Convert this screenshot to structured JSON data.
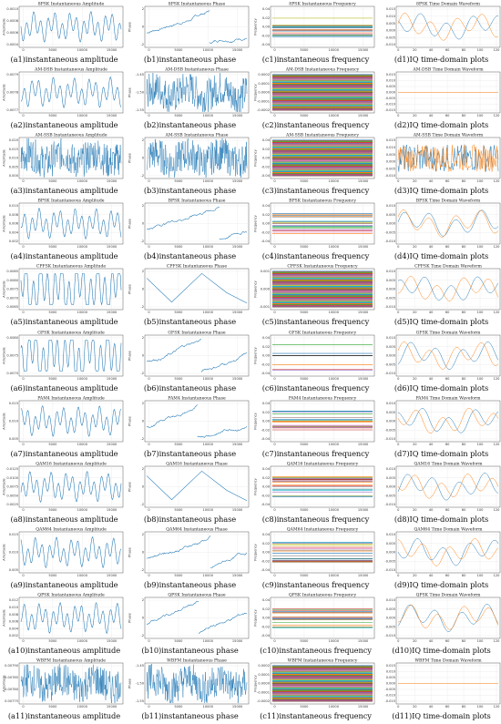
{
  "chart_data": [
    {
      "type": "line",
      "title": "8PSK Instantaneous Amplitude",
      "caption": "(a1)instantaneous amplitude",
      "ylabel": "Amplitude",
      "kind": "amp",
      "yticks": [
        "0.0010",
        "0.0008",
        "0.0006",
        "0.0004"
      ],
      "xticks": [
        "0",
        "5000",
        "10000",
        "15000"
      ]
    },
    {
      "type": "line",
      "title": "8PSK Instantaneous Phase",
      "caption": "(b1)instantaneous phase",
      "ylabel": "Phase",
      "kind": "phase",
      "yticks": [
        "2",
        "0",
        "-2"
      ],
      "xticks": [
        "0",
        "5000",
        "10000",
        "15000"
      ]
    },
    {
      "type": "line",
      "title": "8PSK Instantaneous Frequency",
      "caption": "(c1)instantaneous frequency",
      "ylabel": "Frequency",
      "kind": "freq",
      "yticks": [
        "0.04",
        "0.02",
        "0.00",
        "-0.02",
        "-0.04"
      ],
      "xticks": [
        "0",
        "5000",
        "10000",
        "15000"
      ]
    },
    {
      "type": "line",
      "title": "8PSK Time Domain Waveform",
      "caption": "(d1)IQ time-domain plots",
      "kind": "iq",
      "yticks": [
        "0.015",
        "0.010",
        "0.005",
        "0.000",
        "-0.005",
        "-0.010"
      ],
      "xticks": [
        "0",
        "20",
        "40",
        "60",
        "80",
        "100",
        "120"
      ]
    },
    {
      "type": "line",
      "title": "AM-DSB Instantaneous Amplitude",
      "caption": "(a2)instantaneous amplitude",
      "ylabel": "Amplitude",
      "kind": "amp",
      "yticks": [
        "0.0079",
        "0.0078",
        "0.0077"
      ],
      "xticks": [
        "0",
        "5000",
        "10000",
        "15000"
      ]
    },
    {
      "type": "line",
      "title": "AM-DSB Instantaneous Phase",
      "caption": "(b2)instantaneous phase",
      "ylabel": "Phase",
      "kind": "phasenoise",
      "yticks": [
        "-1.45",
        "-1.50",
        "-1.55"
      ],
      "xticks": [
        "0",
        "5000",
        "10000",
        "15000"
      ]
    },
    {
      "type": "line",
      "title": "AM-DSB Instantaneous Frequency",
      "caption": "(c2)instantaneous frequency",
      "ylabel": "Frequency",
      "kind": "freqdense",
      "yticks": [
        "0.0002",
        "0.0001",
        "0.0000",
        "-0.0001",
        "-0.0002"
      ],
      "xticks": [
        "0",
        "5000",
        "10000",
        "15000"
      ]
    },
    {
      "type": "line",
      "title": "AM-DSB Time Domain Waveform",
      "caption": "(d2)IQ time-domain plots",
      "kind": "iqflat",
      "yticks": [
        "0.015",
        "0.010",
        "0.005",
        "0.000",
        "-0.005",
        "-0.010",
        "-0.015"
      ],
      "xticks": [
        "0",
        "20",
        "40",
        "60",
        "80",
        "100",
        "120"
      ]
    },
    {
      "type": "line",
      "title": "AM-SSB Instantaneous Amplitude",
      "caption": "(a3)instantaneous amplitude",
      "ylabel": "Amplitude",
      "kind": "ampnoise",
      "yticks": [
        "0.020",
        "0.015",
        "0.010",
        "0.005",
        "0.000"
      ],
      "xticks": [
        "0",
        "5000",
        "10000",
        "15000"
      ]
    },
    {
      "type": "line",
      "title": "AM-SSB Instantaneous Phase",
      "caption": "(b3)instantaneous phase",
      "ylabel": "Phase",
      "kind": "phasenoise",
      "yticks": [
        "2",
        "0",
        "-2"
      ],
      "xticks": [
        "0",
        "5000",
        "10000",
        "15000"
      ]
    },
    {
      "type": "line",
      "title": "AM-SSB Instantaneous Frequency",
      "caption": "(c3)instantaneous frequency",
      "ylabel": "Frequency",
      "kind": "freqdense",
      "yticks": [
        "0.04",
        "0.02",
        "0.00",
        "-0.02",
        "-0.04"
      ],
      "xticks": [
        "0",
        "5000",
        "10000",
        "15000"
      ]
    },
    {
      "type": "line",
      "title": "AM-SSB Time Domain Waveform",
      "caption": "(d3)IQ time-domain plots",
      "kind": "iqnoise",
      "yticks": [
        "0.015",
        "0.010",
        "0.005",
        "0.000",
        "-0.005",
        "-0.010"
      ],
      "xticks": [
        "0",
        "20",
        "40",
        "60",
        "80",
        "100",
        "120"
      ]
    },
    {
      "type": "line",
      "title": "BPSK Instantaneous Amplitude",
      "caption": "(a4)instantaneous amplitude",
      "ylabel": "Amplitude",
      "kind": "amp",
      "yticks": [
        "0.010",
        "0.008",
        "0.006",
        "0.004",
        "0.002"
      ],
      "xticks": [
        "0",
        "5000",
        "10000",
        "15000"
      ]
    },
    {
      "type": "line",
      "title": "BPSK Instantaneous Phase",
      "caption": "(b4)instantaneous phase",
      "ylabel": "Phase",
      "kind": "phase",
      "yticks": [
        "2",
        "0",
        "-2"
      ],
      "xticks": [
        "0",
        "5000",
        "10000",
        "15000"
      ]
    },
    {
      "type": "line",
      "title": "BPSK Instantaneous Frequency",
      "caption": "(c4)instantaneous frequency",
      "ylabel": "Frequency",
      "kind": "freq",
      "yticks": [
        "0.04",
        "0.02",
        "0.00",
        "-0.02",
        "-0.04"
      ],
      "xticks": [
        "0",
        "5000",
        "10000",
        "15000"
      ]
    },
    {
      "type": "line",
      "title": "BPSK Time Domain Waveform",
      "caption": "(d4)IQ time-domain plots",
      "kind": "iq",
      "yticks": [
        "0.010",
        "0.005",
        "0.000",
        "-0.005",
        "-0.010"
      ],
      "xticks": [
        "0",
        "20",
        "40",
        "60",
        "80",
        "100",
        "120"
      ]
    },
    {
      "type": "line",
      "title": "CPFSK Instantaneous Amplitude",
      "caption": "(a5)instantaneous amplitude",
      "ylabel": "Amplitude",
      "kind": "ampsq",
      "yticks": [
        "0.0085",
        "0.0080",
        "0.0075",
        "0.0070",
        "0.0065"
      ],
      "xticks": [
        "0",
        "5000",
        "10000",
        "15000"
      ]
    },
    {
      "type": "line",
      "title": "CPFSK Instantaneous Phase",
      "caption": "(b5)instantaneous phase",
      "ylabel": "Phase",
      "kind": "phasetri",
      "yticks": [
        "2",
        "0",
        "-2"
      ],
      "xticks": [
        "0",
        "5000",
        "10000",
        "15000"
      ]
    },
    {
      "type": "line",
      "title": "CPFSK Instantaneous Frequency",
      "caption": "(c5)instantaneous frequency",
      "ylabel": "Frequency",
      "kind": "freqdense",
      "yticks": [
        "0.001",
        "0.000",
        "-0.001"
      ],
      "xticks": [
        "0",
        "5000",
        "10000",
        "15000"
      ]
    },
    {
      "type": "line",
      "title": "CPFSK Time Domain Waveform",
      "caption": "(d5)IQ time-domain plots",
      "kind": "iq",
      "yticks": [
        "0.010",
        "0.005",
        "0.000",
        "-0.005",
        "-0.010"
      ],
      "xticks": [
        "0",
        "20",
        "40",
        "60",
        "80",
        "100",
        "120"
      ]
    },
    {
      "type": "line",
      "title": "GFSK Instantaneous Amplitude",
      "caption": "(a6)instantaneous amplitude",
      "ylabel": "Amplitude",
      "kind": "ampsq",
      "yticks": [
        "0.0080",
        "0.0075",
        "0.0070"
      ],
      "xticks": [
        "0",
        "5000",
        "10000",
        "15000"
      ]
    },
    {
      "type": "line",
      "title": "GFSK Instantaneous Phase",
      "caption": "(b6)instantaneous phase",
      "ylabel": "Phase",
      "kind": "phase",
      "yticks": [
        "2",
        "0",
        "-2"
      ],
      "xticks": [
        "0",
        "5000",
        "10000",
        "15000"
      ]
    },
    {
      "type": "line",
      "title": "GFSK Instantaneous Frequency",
      "caption": "(c6)instantaneous frequency",
      "ylabel": "Frequency",
      "kind": "freqsparse",
      "yticks": [
        "0.04",
        "0.02",
        "0.00",
        "-0.02",
        "-0.04"
      ],
      "xticks": [
        "0",
        "5000",
        "10000",
        "15000"
      ]
    },
    {
      "type": "line",
      "title": "GFSK Time Domain Waveform",
      "caption": "(d6)IQ time-domain plots",
      "kind": "iq",
      "yticks": [
        "0.010",
        "0.005",
        "0.000",
        "-0.005",
        "-0.010"
      ],
      "xticks": [
        "0",
        "20",
        "40",
        "60",
        "80",
        "100",
        "120"
      ]
    },
    {
      "type": "line",
      "title": "PAM4 Instantaneous Amplitude",
      "caption": "(a7)instantaneous amplitude",
      "ylabel": "Amplitude",
      "kind": "amp",
      "yticks": [
        "0.015",
        "0.010",
        "0.005"
      ],
      "xticks": [
        "0",
        "5000",
        "10000",
        "15000"
      ]
    },
    {
      "type": "line",
      "title": "PAM4 Instantaneous Phase",
      "caption": "(b7)instantaneous phase",
      "ylabel": "Phase",
      "kind": "phase",
      "yticks": [
        "2",
        "0",
        "-2"
      ],
      "xticks": [
        "0",
        "5000",
        "10000",
        "15000"
      ]
    },
    {
      "type": "line",
      "title": "PAM4 Instantaneous Frequency",
      "caption": "(c7)instantaneous frequency",
      "ylabel": "Frequency",
      "kind": "freq",
      "yticks": [
        "0.04",
        "0.02",
        "0.00",
        "-0.02",
        "-0.04"
      ],
      "xticks": [
        "0",
        "5000",
        "10000",
        "15000"
      ]
    },
    {
      "type": "line",
      "title": "PAM4 Time Domain Waveform",
      "caption": "(d7)IQ time-domain plots",
      "kind": "iq",
      "yticks": [
        "0.010",
        "0.005",
        "0.000",
        "-0.005",
        "-0.010"
      ],
      "xticks": [
        "0",
        "20",
        "40",
        "60",
        "80",
        "100",
        "120"
      ]
    },
    {
      "type": "line",
      "title": "QAM16 Instantaneous Amplitude",
      "caption": "(a8)instantaneous amplitude",
      "ylabel": "Amplitude",
      "kind": "amp",
      "yticks": [
        "0.0125",
        "0.0100",
        "0.0075",
        "0.0050",
        "0.0025"
      ],
      "xticks": [
        "0",
        "5000",
        "10000",
        "15000"
      ]
    },
    {
      "type": "line",
      "title": "QAM16 Instantaneous Phase",
      "caption": "(b8)instantaneous phase",
      "ylabel": "Phase",
      "kind": "phasetri",
      "yticks": [
        "2",
        "0",
        "-2"
      ],
      "xticks": [
        "0",
        "5000",
        "10000",
        "15000"
      ]
    },
    {
      "type": "line",
      "title": "QAM16 Instantaneous Frequency",
      "caption": "(c8)instantaneous frequency",
      "ylabel": "Frequency",
      "kind": "freq",
      "yticks": [
        "0.04",
        "0.02",
        "0.00",
        "-0.02",
        "-0.04"
      ],
      "xticks": [
        "0",
        "5000",
        "10000",
        "15000"
      ]
    },
    {
      "type": "line",
      "title": "QAM16 Time Domain Waveform",
      "caption": "(d8)IQ time-domain plots",
      "kind": "iq",
      "yticks": [
        "0.010",
        "0.005",
        "0.000",
        "-0.005",
        "-0.010"
      ],
      "xticks": [
        "0",
        "20",
        "40",
        "60",
        "80",
        "100",
        "120"
      ]
    },
    {
      "type": "line",
      "title": "QAM64 Instantaneous Amplitude",
      "caption": "(a9)instantaneous amplitude",
      "ylabel": "Amplitude",
      "kind": "amp",
      "yticks": [
        "0.015",
        "0.010",
        "0.005"
      ],
      "xticks": [
        "0",
        "5000",
        "10000",
        "15000"
      ]
    },
    {
      "type": "line",
      "title": "QAM64 Instantaneous Phase",
      "caption": "(b9)instantaneous phase",
      "ylabel": "Phase",
      "kind": "phase",
      "yticks": [
        "2",
        "0",
        "-2"
      ],
      "xticks": [
        "0",
        "5000",
        "10000",
        "15000"
      ]
    },
    {
      "type": "line",
      "title": "QAM64 Instantaneous Frequency",
      "caption": "(c9)instantaneous frequency",
      "ylabel": "Frequency",
      "kind": "freq",
      "yticks": [
        "0.04",
        "0.02",
        "0.00",
        "-0.02",
        "-0.04"
      ],
      "xticks": [
        "0",
        "5000",
        "10000",
        "15000"
      ]
    },
    {
      "type": "line",
      "title": "QAM64 Time Domain Waveform",
      "caption": "(d9)IQ time-domain plots",
      "kind": "iq",
      "yticks": [
        "0.010",
        "0.005",
        "0.000",
        "-0.005",
        "-0.010"
      ],
      "xticks": [
        "0",
        "20",
        "40",
        "60",
        "80",
        "100",
        "120"
      ]
    },
    {
      "type": "line",
      "title": "QPSK Instantaneous Amplitude",
      "caption": "(a10)instantaneous amplitude",
      "ylabel": "Amplitude",
      "kind": "amp",
      "yticks": [
        "0.012",
        "0.010",
        "0.008",
        "0.006",
        "0.004",
        "0.002"
      ],
      "xticks": [
        "0",
        "5000",
        "10000",
        "15000"
      ]
    },
    {
      "type": "line",
      "title": "QPSK Instantaneous Phase",
      "caption": "(b10)instantaneous phase",
      "ylabel": "Phase",
      "kind": "phase",
      "yticks": [
        "2",
        "0",
        "-2"
      ],
      "xticks": [
        "0",
        "5000",
        "10000",
        "15000"
      ]
    },
    {
      "type": "line",
      "title": "QPSK Instantaneous Frequency",
      "caption": "(c10)instantaneous frequency",
      "ylabel": "Frequency",
      "kind": "freq",
      "yticks": [
        "0.04",
        "0.02",
        "0.00",
        "-0.02",
        "-0.04"
      ],
      "xticks": [
        "0",
        "5000",
        "10000",
        "15000"
      ]
    },
    {
      "type": "line",
      "title": "QPSK Time Domain Waveform",
      "caption": "(d10)IQ time-domain plots",
      "kind": "iq",
      "yticks": [
        "0.010",
        "0.005",
        "0.000",
        "-0.005",
        "-0.010"
      ],
      "xticks": [
        "0",
        "20",
        "40",
        "60",
        "80",
        "100",
        "120"
      ]
    },
    {
      "type": "line",
      "title": "WBFM Instantaneous Amplitude",
      "caption": "(a11)instantaneous amplitude",
      "ylabel": "Amplitude",
      "kind": "ampnoise",
      "yticks": [
        "0.00790",
        "0.00785",
        "0.00780",
        "0.00775"
      ],
      "xticks": [
        "0",
        "5000",
        "10000",
        "15000"
      ]
    },
    {
      "type": "line",
      "title": "WBFM Instantaneous Phase",
      "caption": "(b11)instantaneous phase",
      "ylabel": "Phase",
      "kind": "phasenoise",
      "yticks": [
        "-1.45",
        "-1.50",
        "-1.55"
      ],
      "xticks": [
        "0",
        "5000",
        "10000",
        "15000"
      ]
    },
    {
      "type": "line",
      "title": "WBFM Instantaneous Frequency",
      "caption": "(c11)instantaneous frequency",
      "ylabel": "Frequency",
      "kind": "freqdense",
      "yticks": [
        "0.0002",
        "0.0001",
        "0.0000",
        "-0.0001",
        "-0.0002"
      ],
      "xticks": [
        "0",
        "5000",
        "10000",
        "15000"
      ]
    },
    {
      "type": "line",
      "title": "WBFM Time Domain Waveform",
      "caption": "(d11)IQ time-domain plots",
      "kind": "iqflat",
      "yticks": [
        "0.015",
        "0.010",
        "0.005",
        "0.000",
        "-0.005",
        "-0.010",
        "-0.015"
      ],
      "xticks": [
        "0",
        "20",
        "40",
        "60",
        "80",
        "100",
        "120"
      ]
    }
  ],
  "colors": {
    "line": "#1f77b4",
    "i_channel": "#1f77b4",
    "q_channel": "#ff7f0e",
    "frequency_palette": [
      "#1f77b4",
      "#ff7f0e",
      "#2ca02c",
      "#d62728",
      "#9467bd",
      "#8c564b",
      "#e377c2",
      "#7f7f7f",
      "#bcbd22",
      "#17becf"
    ]
  }
}
